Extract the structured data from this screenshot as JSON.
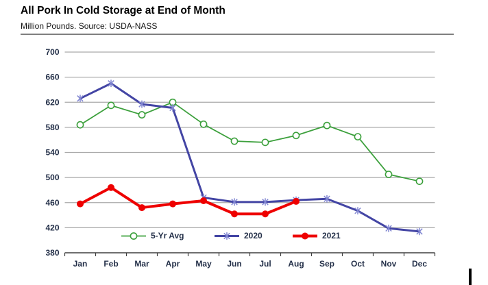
{
  "header": {
    "title": "All Pork In Cold Storage at End of Month",
    "subtitle": "Million Pounds.  Source: USDA-NASS"
  },
  "chart_data": {
    "type": "line",
    "title": "All Pork In Cold Storage at End of Month",
    "ylabel": "Million Pounds",
    "source": "USDA-NASS",
    "categories": [
      "Jan",
      "Feb",
      "Mar",
      "Apr",
      "May",
      "Jun",
      "Jul",
      "Aug",
      "Sep",
      "Oct",
      "Nov",
      "Dec"
    ],
    "series": [
      {
        "name": "5-Yr Avg",
        "color": "#3CA03C",
        "marker": "circle-open",
        "line_width": 1.8,
        "values": [
          584,
          615,
          600,
          620,
          585,
          558,
          556,
          567,
          583,
          565,
          505,
          494
        ]
      },
      {
        "name": "2020",
        "color": "#4345A4",
        "marker_color": "#8287D2",
        "marker": "asterisk",
        "line_width": 3,
        "values": [
          626,
          650,
          617,
          611,
          468,
          461,
          461,
          464,
          466,
          447,
          419,
          414
        ]
      },
      {
        "name": "2021",
        "color": "#EE0000",
        "marker": "circle-filled",
        "line_width": 4,
        "values": [
          458,
          484,
          452,
          458,
          463,
          442,
          442,
          462,
          null,
          null,
          null,
          null
        ]
      }
    ],
    "ylim": [
      380,
      700
    ],
    "ytick_step": 40,
    "yticks": [
      380,
      420,
      460,
      500,
      540,
      580,
      620,
      660,
      700
    ],
    "grid": "horizontal",
    "legend_position": "bottom-inside",
    "style": {
      "grid_color": "#A9A9A9",
      "axis_color": "#3F3F3F",
      "text_color": "#243049"
    }
  }
}
